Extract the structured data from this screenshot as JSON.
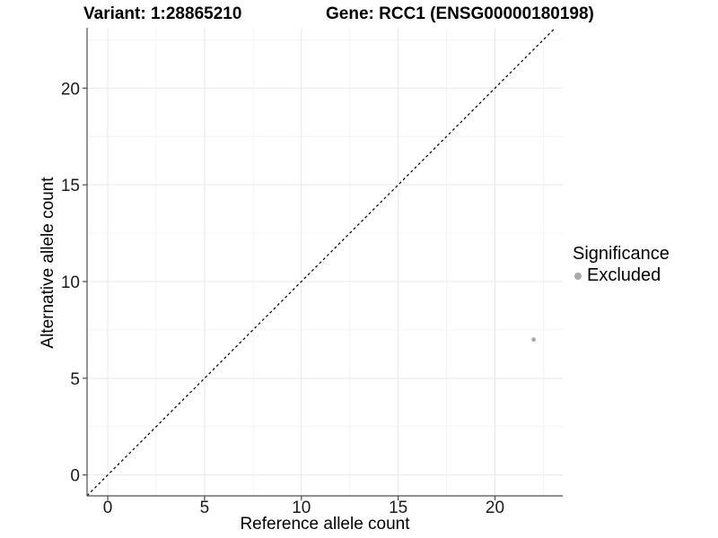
{
  "chart_data": {
    "type": "scatter",
    "title_left": "Variant: 1:28865210",
    "title_right": "Gene: RCC1 (ENSG00000180198)",
    "xlabel": "Reference allele count",
    "ylabel": "Alternative allele count",
    "x_ticks": [
      0,
      5,
      10,
      15,
      20
    ],
    "y_ticks": [
      0,
      5,
      10,
      15,
      20
    ],
    "x_minor": [
      2.5,
      7.5,
      12.5,
      17.5,
      22.5
    ],
    "y_minor": [
      2.5,
      7.5,
      12.5,
      17.5,
      22.5
    ],
    "xlim": [
      -1.07,
      23.5
    ],
    "ylim": [
      -1.08,
      23.12
    ],
    "grid": "major+minor",
    "points": [
      {
        "x": 22,
        "y": 7,
        "series": "Excluded"
      }
    ],
    "reference_line": {
      "type": "identity",
      "slope": 1,
      "intercept": 0,
      "style": "dashed"
    },
    "legend": {
      "title": "Significance",
      "position": "right",
      "items": [
        {
          "label": "Excluded",
          "color": "#a9a9a9"
        }
      ]
    },
    "colors": {
      "point": "#a9a9a9",
      "grid_major": "#e8e8e8",
      "grid_minor": "#f4f4f4",
      "axis_line": "#4d4d4d",
      "reference_line": "#000000",
      "tick_text": "#1a1a1a"
    }
  }
}
